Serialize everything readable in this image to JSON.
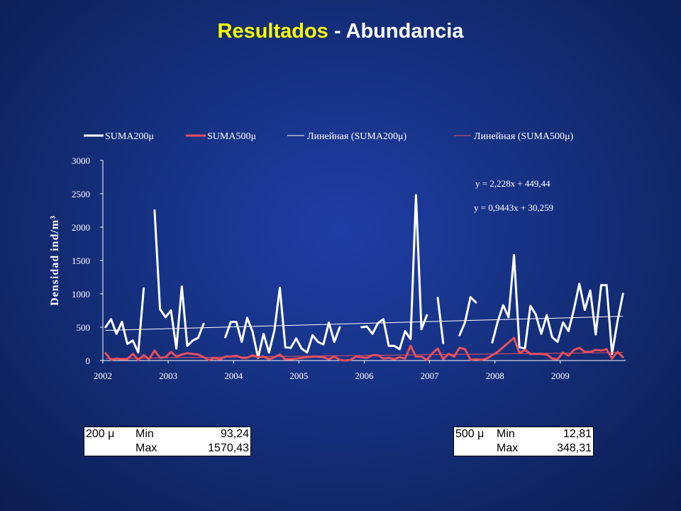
{
  "title": {
    "part1": "Resultados",
    "part2": " - Abundancia"
  },
  "chart_data": {
    "type": "line",
    "ylabel": "Densidad ind/m³",
    "xlabel": "",
    "ylim": [
      0,
      3000
    ],
    "yticks": [
      "0",
      "500",
      "1000",
      "1500",
      "2000",
      "2500",
      "3000"
    ],
    "xtick_labels": [
      "2002",
      "2003",
      "2004",
      "2005",
      "2006",
      "2007",
      "2008",
      "2009"
    ],
    "legend_position": "top",
    "legend": [
      "SUMA200μ",
      "SUMA500μ",
      "Линейная (SUMA200μ)",
      "Линейная (SUMA500μ)"
    ],
    "annotations": [
      "y = 2,228x + 449,44",
      "y = 0,9443x + 30,259"
    ],
    "colors": {
      "suma200": "#ffffff",
      "suma500": "#e8505b",
      "trend200": "#ffffff",
      "trend500": "#e8505b"
    },
    "series": [
      {
        "name": "SUMA200μ",
        "values": [
          500,
          620,
          400,
          580,
          250,
          300,
          120,
          1080,
          null,
          2250,
          770,
          650,
          750,
          180,
          1110,
          220,
          300,
          340,
          550,
          null,
          null,
          null,
          350,
          580,
          580,
          280,
          640,
          430,
          40,
          400,
          120,
          450,
          1090,
          200,
          190,
          330,
          180,
          120,
          380,
          280,
          240,
          570,
          280,
          500,
          null,
          null,
          null,
          500,
          510,
          400,
          560,
          620,
          220,
          220,
          170,
          440,
          320,
          2480,
          470,
          680,
          null,
          940,
          260,
          null,
          null,
          380,
          570,
          950,
          870,
          null,
          null,
          270,
          580,
          830,
          650,
          1580,
          200,
          180,
          820,
          690,
          400,
          680,
          350,
          280,
          570,
          440,
          770,
          1150,
          760,
          1050,
          390,
          1130,
          1130,
          100,
          590,
          1000
        ]
      },
      {
        "name": "SUMA500μ",
        "values": [
          110,
          10,
          30,
          20,
          20,
          100,
          10,
          80,
          20,
          150,
          40,
          50,
          130,
          60,
          90,
          110,
          100,
          90,
          50,
          10,
          40,
          20,
          60,
          60,
          70,
          40,
          40,
          80,
          50,
          60,
          20,
          50,
          90,
          20,
          20,
          30,
          40,
          50,
          60,
          60,
          50,
          20,
          60,
          10,
          0,
          10,
          60,
          50,
          40,
          80,
          80,
          30,
          40,
          20,
          50,
          30,
          220,
          60,
          60,
          10,
          110,
          180,
          20,
          100,
          60,
          190,
          170,
          10,
          20,
          10,
          30,
          80,
          130,
          200,
          270,
          340,
          110,
          160,
          100,
          100,
          100,
          90,
          30,
          20,
          120,
          70,
          160,
          190,
          130,
          130,
          160,
          150,
          170,
          30,
          130,
          50
        ]
      }
    ],
    "trendlines": [
      {
        "name": "Линейная (SUMA200μ)",
        "equation": "y = 2,228x + 449,44",
        "slope": 2.228,
        "intercept": 449.44
      },
      {
        "name": "Линейная (SUMA500μ)",
        "equation": "y = 0,9443x + 30,259",
        "slope": 0.9443,
        "intercept": 30.259
      }
    ]
  },
  "tables": {
    "t200": {
      "label": "200 μ",
      "min_label": "Min",
      "min_value": "93,24",
      "max_label": "Max",
      "max_value": "1570,43"
    },
    "t500": {
      "label": "500 μ",
      "min_label": "Min",
      "min_value": "12,81",
      "max_label": "Max",
      "max_value": "348,31"
    }
  }
}
